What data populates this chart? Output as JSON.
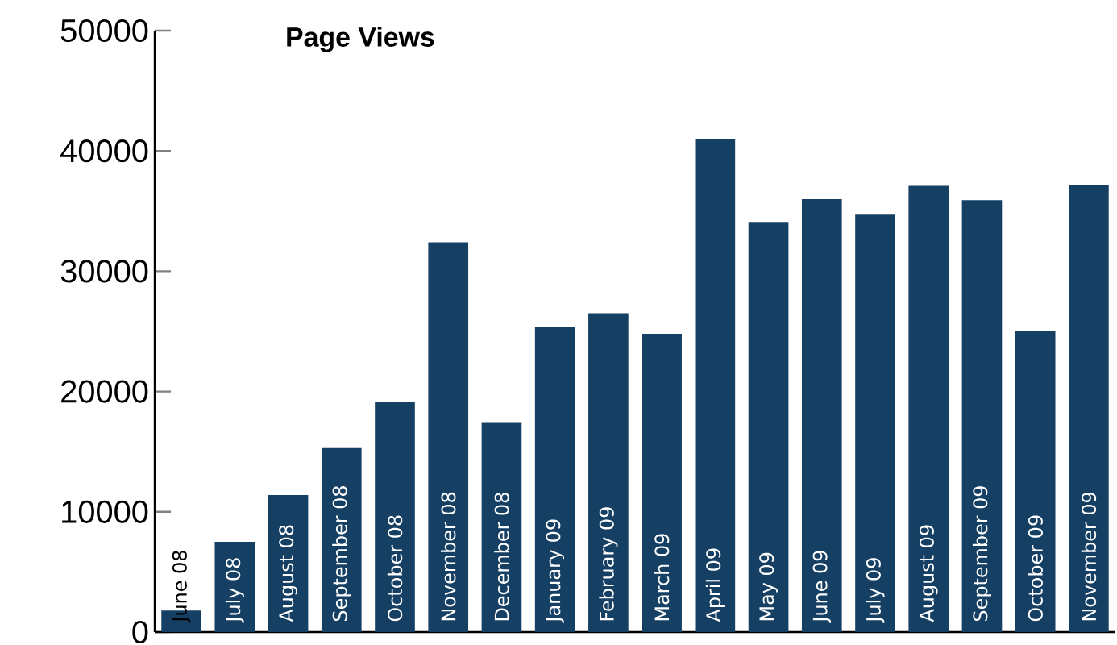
{
  "chart_data": {
    "type": "bar",
    "title": "Page Views",
    "categories": [
      "June 08",
      "July 08",
      "August 08",
      "September 08",
      "October 08",
      "November 08",
      "December 08",
      "January 09",
      "February 09",
      "March 09",
      "April 09",
      "May 09",
      "June 09",
      "July 09",
      "August 09",
      "September 09",
      "October 09",
      "November 09"
    ],
    "values": [
      1800,
      7500,
      11400,
      15300,
      19100,
      32400,
      17400,
      25400,
      26500,
      24800,
      41000,
      34100,
      36000,
      34700,
      37100,
      35900,
      25000,
      37200
    ],
    "color": "#163f64",
    "ylim": [
      0,
      50000
    ],
    "yticks": [
      0,
      10000,
      20000,
      30000,
      40000,
      50000
    ],
    "grid": false
  }
}
